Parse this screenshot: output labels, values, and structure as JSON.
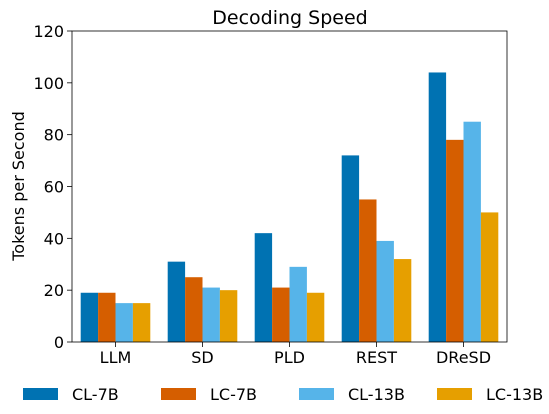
{
  "chart_data": {
    "type": "bar",
    "title": "Decoding Speed",
    "xlabel": "",
    "ylabel": "Tokens per Second",
    "ylim": [
      0,
      120
    ],
    "yticks": [
      0,
      20,
      40,
      60,
      80,
      100,
      120
    ],
    "categories": [
      "LLM",
      "SD",
      "PLD",
      "REST",
      "DReSD"
    ],
    "series": [
      {
        "name": "CL-7B",
        "color": "#0072b2",
        "values": [
          19,
          31,
          42,
          72,
          104
        ]
      },
      {
        "name": "LC-7B",
        "color": "#d55e00",
        "values": [
          19,
          25,
          21,
          55,
          78
        ]
      },
      {
        "name": "CL-13B",
        "color": "#56b4e9",
        "values": [
          15,
          21,
          29,
          39,
          85
        ]
      },
      {
        "name": "LC-13B",
        "color": "#e69f00",
        "values": [
          15,
          20,
          19,
          32,
          50
        ]
      }
    ],
    "grid": false,
    "legend": "bottom"
  }
}
